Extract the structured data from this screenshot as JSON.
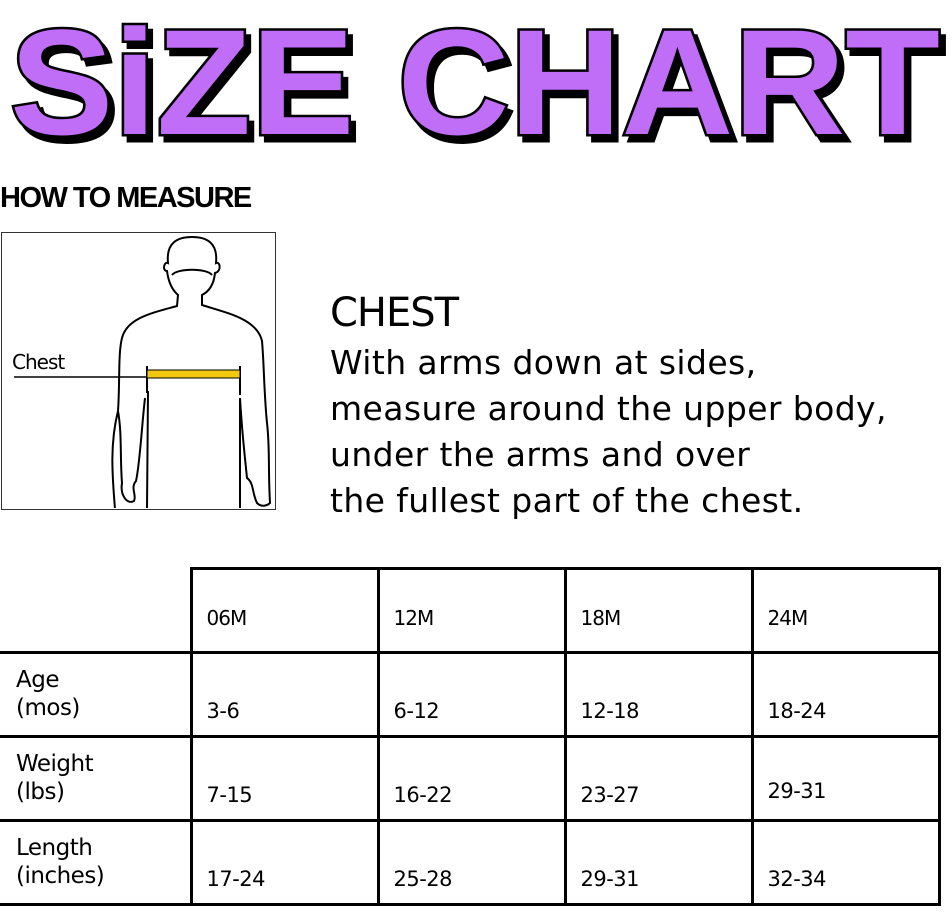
{
  "title": "SiZE CHART",
  "colors": {
    "title_fill": "#c06ef8",
    "title_outline": "#000000",
    "tape": "#f2c811"
  },
  "how_to_measure": "HOW TO MEASURE",
  "figure": {
    "label": "Chest"
  },
  "chest": {
    "heading": "CHEST",
    "lines": [
      "With arms down at sides,",
      "measure around the upper body,",
      "under the arms and over",
      "the fullest part of the chest."
    ]
  },
  "table": {
    "columns": [
      "06M",
      "12M",
      "18M",
      "24M"
    ],
    "rows": [
      {
        "label": [
          "Age",
          "(mos)"
        ],
        "values": [
          "3-6",
          "6-12",
          "12-18",
          "18-24"
        ]
      },
      {
        "label": [
          "Weight",
          "(lbs)"
        ],
        "values": [
          "7-15",
          "16-22",
          "23-27",
          "29-31"
        ]
      },
      {
        "label": [
          "Length",
          "(inches)"
        ],
        "values": [
          "17-24",
          "25-28",
          "29-31",
          "32-34"
        ]
      }
    ]
  }
}
